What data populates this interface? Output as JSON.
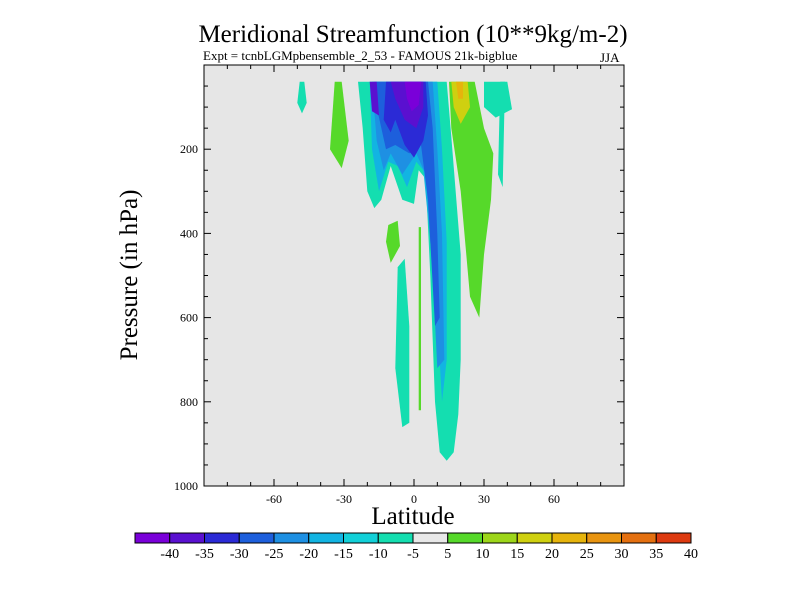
{
  "chart_data": {
    "type": "contour",
    "title": "Meridional Streamfunction (10**9kg/m-2)",
    "subtitle": "Expt = tcnbLGMpbensemble_2_53 - FAMOUS 21k-bigblue",
    "season": "JJA",
    "xlabel": "Latitude",
    "ylabel": "Pressure (in hPa)",
    "xlim": [
      -90,
      90
    ],
    "ylim": [
      1000,
      0
    ],
    "y_axis_inverted": true,
    "x_ticks": [
      {
        "value": -60,
        "label": "-60"
      },
      {
        "value": -30,
        "label": "-30"
      },
      {
        "value": 0,
        "label": "0"
      },
      {
        "value": 30,
        "label": "30"
      },
      {
        "value": 60,
        "label": "60"
      }
    ],
    "y_ticks": [
      {
        "value": 200,
        "label": "200"
      },
      {
        "value": 400,
        "label": "400"
      },
      {
        "value": 600,
        "label": "600"
      },
      {
        "value": 800,
        "label": "800"
      },
      {
        "value": 1000,
        "label": "1000"
      }
    ],
    "background_color": "#e6e6e6",
    "colorbar": {
      "levels": [
        "-40",
        "-35",
        "-30",
        "-25",
        "-20",
        "-15",
        "-10",
        "-5",
        "5",
        "10",
        "15",
        "20",
        "25",
        "30",
        "35",
        "40"
      ],
      "colors": [
        "#7a00d9",
        "#5a10d0",
        "#2b2ad6",
        "#1d5fdc",
        "#1e90e3",
        "#12b4e2",
        "#12d0d8",
        "#14deb0",
        "#e8e8e8",
        "#56d92a",
        "#9dd61a",
        "#cfd010",
        "#e6b40c",
        "#e89410",
        "#e47010",
        "#dd3a10"
      ]
    },
    "contour_regions": [
      {
        "id": "cyan-sliver-55s",
        "value_band": "-10..-5",
        "color": "#14deb0",
        "points": [
          [
            -49,
            40
          ],
          [
            -47,
            40
          ],
          [
            -46,
            90
          ],
          [
            -48,
            115
          ],
          [
            -50,
            90
          ]
        ]
      },
      {
        "id": "green-plume-30s",
        "value_band": "5..10",
        "color": "#56d92a",
        "points": [
          [
            -34,
            40
          ],
          [
            -31,
            40
          ],
          [
            -28,
            180
          ],
          [
            -31,
            245
          ],
          [
            -36,
            200
          ]
        ]
      },
      {
        "id": "cyan-east-edge",
        "value_band": "-10..-5",
        "color": "#14deb0",
        "points": [
          [
            30,
            40
          ],
          [
            40,
            40
          ],
          [
            42,
            105
          ],
          [
            35,
            125
          ],
          [
            30,
            100
          ]
        ]
      },
      {
        "id": "cyan-45e-sliver",
        "value_band": "-10..-5",
        "color": "#14deb0",
        "points": [
          [
            37,
            40
          ],
          [
            39,
            40
          ],
          [
            38,
            290
          ],
          [
            36,
            260
          ]
        ]
      },
      {
        "id": "green-30e",
        "value_band": "5..10",
        "color": "#56d92a",
        "points": [
          [
            15,
            40
          ],
          [
            26,
            40
          ],
          [
            30,
            150
          ],
          [
            34,
            210
          ],
          [
            33,
            320
          ],
          [
            30,
            450
          ],
          [
            28,
            600
          ],
          [
            24,
            550
          ],
          [
            20,
            300
          ],
          [
            16,
            150
          ]
        ]
      },
      {
        "id": "yellow-20e",
        "value_band": "15..20",
        "color": "#cfd010",
        "points": [
          [
            16,
            40
          ],
          [
            23,
            40
          ],
          [
            24,
            100
          ],
          [
            20,
            140
          ],
          [
            17,
            100
          ]
        ]
      },
      {
        "id": "orange-20e",
        "value_band": "20..25",
        "color": "#e6b40c",
        "points": [
          [
            18,
            40
          ],
          [
            21,
            40
          ],
          [
            21,
            80
          ],
          [
            19,
            80
          ]
        ]
      },
      {
        "id": "cyan-main-cell",
        "value_band": "-10..-5",
        "color": "#14deb0",
        "points": [
          [
            -24,
            40
          ],
          [
            14,
            40
          ],
          [
            16,
            170
          ],
          [
            20,
            450
          ],
          [
            20,
            700
          ],
          [
            19,
            830
          ],
          [
            17,
            920
          ],
          [
            14,
            940
          ],
          [
            11,
            920
          ],
          [
            9,
            800
          ],
          [
            7,
            500
          ],
          [
            5,
            270
          ],
          [
            2,
            250
          ],
          [
            0,
            330
          ],
          [
            -5,
            320
          ],
          [
            -10,
            240
          ],
          [
            -14,
            320
          ],
          [
            -17,
            340
          ],
          [
            -20,
            300
          ],
          [
            -22,
            150
          ]
        ]
      },
      {
        "id": "cyan-rising-limb",
        "value_band": "-10..-5",
        "color": "#14deb0",
        "points": [
          [
            -7,
            480
          ],
          [
            -4,
            460
          ],
          [
            -2,
            620
          ],
          [
            -2,
            850
          ],
          [
            -5,
            860
          ],
          [
            -8,
            720
          ]
        ]
      },
      {
        "id": "green-lower-blob",
        "value_band": "5..10",
        "color": "#56d92a",
        "points": [
          [
            -11,
            380
          ],
          [
            -7,
            370
          ],
          [
            -6,
            430
          ],
          [
            -10,
            470
          ],
          [
            -12,
            420
          ]
        ]
      },
      {
        "id": "green-line-2n",
        "value_band": "5..10",
        "color": "#56d92a",
        "points": [
          [
            2,
            385
          ],
          [
            3,
            385
          ],
          [
            3,
            820
          ],
          [
            2,
            820
          ]
        ]
      },
      {
        "id": "cyan-band-2",
        "value_band": "-15..-10",
        "color": "#12b4e2",
        "points": [
          [
            -19,
            40
          ],
          [
            10,
            40
          ],
          [
            12,
            200
          ],
          [
            14,
            420
          ],
          [
            14,
            700
          ],
          [
            12,
            800
          ],
          [
            10,
            600
          ],
          [
            7,
            420
          ],
          [
            4,
            250
          ],
          [
            1,
            230
          ],
          [
            -3,
            290
          ],
          [
            -7,
            240
          ],
          [
            -11,
            230
          ],
          [
            -15,
            300
          ],
          [
            -18,
            200
          ]
        ]
      },
      {
        "id": "blue-band",
        "value_band": "-20..-15",
        "color": "#1e90e3",
        "points": [
          [
            -18,
            40
          ],
          [
            8,
            40
          ],
          [
            10,
            200
          ],
          [
            12,
            400
          ],
          [
            13,
            700
          ],
          [
            10,
            720
          ],
          [
            8,
            500
          ],
          [
            5,
            260
          ],
          [
            1,
            210
          ],
          [
            -5,
            260
          ],
          [
            -10,
            210
          ],
          [
            -13,
            250
          ],
          [
            -16,
            180
          ]
        ]
      },
      {
        "id": "deep-blue-band",
        "value_band": "-25..-20",
        "color": "#1d5fdc",
        "points": [
          [
            -17,
            40
          ],
          [
            6,
            40
          ],
          [
            8,
            150
          ],
          [
            10,
            400
          ],
          [
            11,
            600
          ],
          [
            9,
            620
          ],
          [
            6,
            320
          ],
          [
            3,
            190
          ],
          [
            -2,
            210
          ],
          [
            -8,
            190
          ],
          [
            -12,
            200
          ],
          [
            -16,
            100
          ]
        ]
      },
      {
        "id": "indigo-core",
        "value_band": "-30..-25",
        "color": "#2b2ad6",
        "points": [
          [
            -12,
            40
          ],
          [
            5,
            40
          ],
          [
            6,
            120
          ],
          [
            4,
            180
          ],
          [
            0,
            220
          ],
          [
            -4,
            190
          ],
          [
            -8,
            130
          ],
          [
            -10,
            160
          ],
          [
            -13,
            130
          ]
        ]
      },
      {
        "id": "violet-core",
        "value_band": "-35..-30",
        "color": "#5a10d0",
        "points": [
          [
            -10,
            40
          ],
          [
            4,
            40
          ],
          [
            4,
            100
          ],
          [
            1,
            150
          ],
          [
            -4,
            130
          ],
          [
            -8,
            80
          ]
        ]
      },
      {
        "id": "purple-core",
        "value_band": "-40..-35",
        "color": "#7a00d9",
        "points": [
          [
            -4,
            40
          ],
          [
            3,
            40
          ],
          [
            2,
            95
          ],
          [
            -1,
            110
          ],
          [
            -3,
            80
          ]
        ]
      },
      {
        "id": "purple-core-2",
        "value_band": "-35..-30",
        "color": "#5a10d0",
        "points": [
          [
            -19,
            40
          ],
          [
            -16,
            40
          ],
          [
            -15,
            120
          ],
          [
            -18,
            110
          ]
        ]
      }
    ]
  }
}
